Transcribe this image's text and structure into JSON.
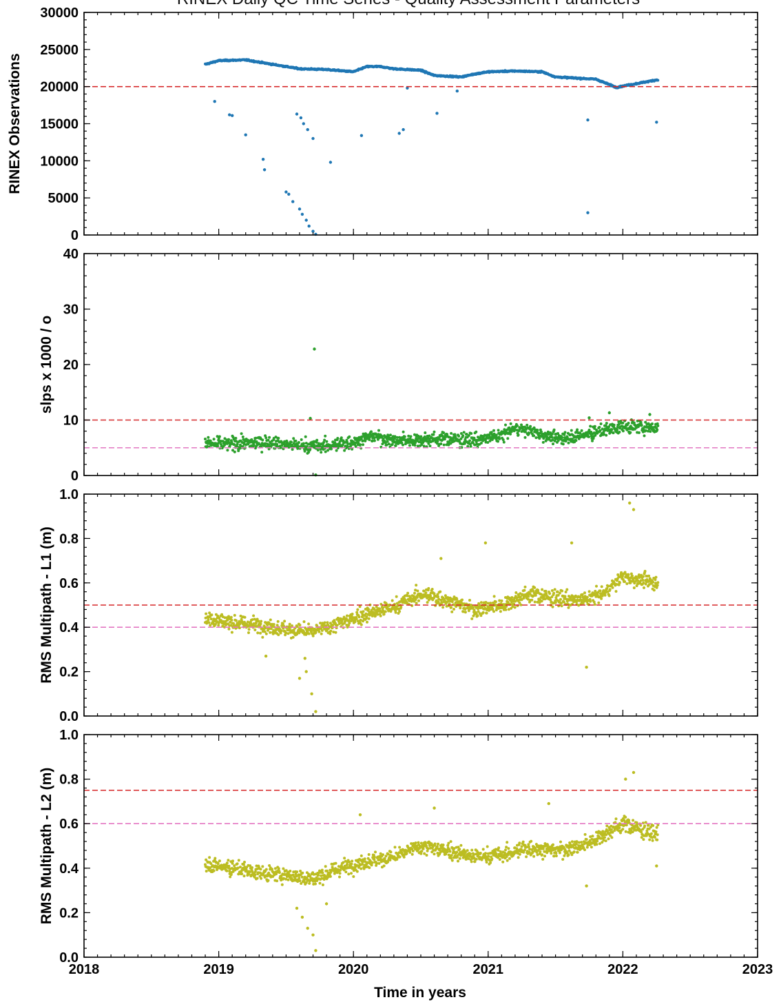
{
  "title": "RINEX Daily QC Time Series - Quality Assessment Parameters",
  "colors": {
    "observations": "#1f77b4",
    "slips": "#2ca02c",
    "multipath": "#bcbd22",
    "threshold_red": "#d62728",
    "threshold_pink": "#e377c2"
  },
  "chart_data": [
    {
      "type": "scatter",
      "ylabel": "RINEX Observations",
      "xlim": [
        2018,
        2023
      ],
      "ylim": [
        0,
        30000
      ],
      "yticks": [
        "0",
        "5000",
        "10000",
        "15000",
        "20000",
        "25000",
        "30000"
      ],
      "reference_lines": [
        {
          "y": 20000,
          "color": "red",
          "style": "dashed"
        }
      ],
      "trend": [
        [
          2018.9,
          23000
        ],
        [
          2019.0,
          23500
        ],
        [
          2019.2,
          23600
        ],
        [
          2019.4,
          23000
        ],
        [
          2019.6,
          22400
        ],
        [
          2019.8,
          22300
        ],
        [
          2020.0,
          22000
        ],
        [
          2020.1,
          22700
        ],
        [
          2020.2,
          22700
        ],
        [
          2020.3,
          22400
        ],
        [
          2020.5,
          22200
        ],
        [
          2020.6,
          21500
        ],
        [
          2020.8,
          21300
        ],
        [
          2020.9,
          21700
        ],
        [
          2021.0,
          22000
        ],
        [
          2021.2,
          22100
        ],
        [
          2021.4,
          22000
        ],
        [
          2021.5,
          21300
        ],
        [
          2021.7,
          21100
        ],
        [
          2021.8,
          21000
        ],
        [
          2021.95,
          19900
        ],
        [
          2022.1,
          20400
        ],
        [
          2022.25,
          20900
        ]
      ],
      "outliers": [
        [
          2018.97,
          18000
        ],
        [
          2019.08,
          16200
        ],
        [
          2019.1,
          16100
        ],
        [
          2019.2,
          13500
        ],
        [
          2019.33,
          10200
        ],
        [
          2019.34,
          8800
        ],
        [
          2019.5,
          5800
        ],
        [
          2019.52,
          5500
        ],
        [
          2019.55,
          4500
        ],
        [
          2019.6,
          3500
        ],
        [
          2019.62,
          2800
        ],
        [
          2019.65,
          2000
        ],
        [
          2019.67,
          1200
        ],
        [
          2019.7,
          500
        ],
        [
          2019.72,
          100
        ],
        [
          2019.58,
          16300
        ],
        [
          2019.61,
          15800
        ],
        [
          2019.63,
          15000
        ],
        [
          2019.66,
          14200
        ],
        [
          2019.7,
          13000
        ],
        [
          2019.83,
          9800
        ],
        [
          2020.06,
          13400
        ],
        [
          2020.34,
          13700
        ],
        [
          2020.37,
          14200
        ],
        [
          2020.4,
          19800
        ],
        [
          2020.62,
          16400
        ],
        [
          2020.77,
          19400
        ],
        [
          2021.74,
          15500
        ],
        [
          2021.74,
          3000
        ],
        [
          2022.25,
          15200
        ]
      ],
      "series_color": "#1f77b4"
    },
    {
      "type": "scatter",
      "ylabel": "slps x 1000 / o",
      "xlim": [
        2018,
        2023
      ],
      "ylim": [
        0,
        40
      ],
      "yticks": [
        "0",
        "10",
        "20",
        "30",
        "40"
      ],
      "reference_lines": [
        {
          "y": 10,
          "color": "red",
          "style": "dashed"
        },
        {
          "y": 5,
          "color": "pink",
          "style": "dashed"
        }
      ],
      "trend": [
        [
          2018.9,
          5.8
        ],
        [
          2019.0,
          5.6
        ],
        [
          2019.2,
          5.8
        ],
        [
          2019.4,
          6.0
        ],
        [
          2019.5,
          5.6
        ],
        [
          2019.7,
          5.2
        ],
        [
          2019.9,
          5.6
        ],
        [
          2020.0,
          6.0
        ],
        [
          2020.15,
          7.2
        ],
        [
          2020.3,
          6.2
        ],
        [
          2020.5,
          6.5
        ],
        [
          2020.7,
          6.6
        ],
        [
          2020.9,
          6.3
        ],
        [
          2021.1,
          7.2
        ],
        [
          2021.2,
          8.6
        ],
        [
          2021.35,
          7.9
        ],
        [
          2021.5,
          6.7
        ],
        [
          2021.7,
          7.3
        ],
        [
          2021.85,
          8.0
        ],
        [
          2022.0,
          8.9
        ],
        [
          2022.25,
          8.6
        ]
      ],
      "outliers": [
        [
          2019.71,
          22.8
        ],
        [
          2019.68,
          10.3
        ],
        [
          2019.72,
          0.1
        ],
        [
          2021.75,
          10.4
        ],
        [
          2021.9,
          11.3
        ],
        [
          2022.2,
          11.0
        ]
      ],
      "series_color": "#2ca02c"
    },
    {
      "type": "scatter",
      "ylabel": "RMS Multipath - L1 (m)",
      "xlim": [
        2018,
        2023
      ],
      "ylim": [
        0,
        1.0
      ],
      "yticks": [
        "0.0",
        "0.2",
        "0.4",
        "0.6",
        "0.8",
        "1.0"
      ],
      "reference_lines": [
        {
          "y": 0.5,
          "color": "red",
          "style": "dashed"
        },
        {
          "y": 0.4,
          "color": "pink",
          "style": "dashed"
        }
      ],
      "trend": [
        [
          2018.9,
          0.44
        ],
        [
          2019.1,
          0.42
        ],
        [
          2019.3,
          0.41
        ],
        [
          2019.5,
          0.39
        ],
        [
          2019.7,
          0.38
        ],
        [
          2019.9,
          0.42
        ],
        [
          2020.1,
          0.46
        ],
        [
          2020.3,
          0.49
        ],
        [
          2020.5,
          0.55
        ],
        [
          2020.7,
          0.52
        ],
        [
          2020.9,
          0.48
        ],
        [
          2021.1,
          0.5
        ],
        [
          2021.3,
          0.55
        ],
        [
          2021.5,
          0.53
        ],
        [
          2021.7,
          0.52
        ],
        [
          2021.85,
          0.55
        ],
        [
          2022.0,
          0.63
        ],
        [
          2022.25,
          0.6
        ]
      ],
      "outliers": [
        [
          2019.6,
          0.17
        ],
        [
          2019.65,
          0.2
        ],
        [
          2019.69,
          0.1
        ],
        [
          2019.72,
          0.02
        ],
        [
          2019.64,
          0.26
        ],
        [
          2019.35,
          0.27
        ],
        [
          2020.65,
          0.71
        ],
        [
          2020.98,
          0.78
        ],
        [
          2021.62,
          0.78
        ],
        [
          2021.73,
          0.22
        ],
        [
          2022.05,
          0.96
        ],
        [
          2022.08,
          0.93
        ]
      ],
      "series_color": "#bcbd22"
    },
    {
      "type": "scatter",
      "ylabel": "RMS Multipath - L2 (m)",
      "xlabel": "Time in years",
      "xlim": [
        2018,
        2023
      ],
      "ylim": [
        0,
        1.0
      ],
      "xticks": [
        "2018",
        "2019",
        "2020",
        "2021",
        "2022",
        "2023"
      ],
      "yticks": [
        "0.0",
        "0.2",
        "0.4",
        "0.6",
        "0.8",
        "1.0"
      ],
      "reference_lines": [
        {
          "y": 0.75,
          "color": "red",
          "style": "dashed"
        },
        {
          "y": 0.6,
          "color": "pink",
          "style": "dashed"
        }
      ],
      "trend": [
        [
          2018.9,
          0.42
        ],
        [
          2019.1,
          0.4
        ],
        [
          2019.3,
          0.38
        ],
        [
          2019.5,
          0.37
        ],
        [
          2019.7,
          0.35
        ],
        [
          2019.9,
          0.4
        ],
        [
          2020.1,
          0.43
        ],
        [
          2020.3,
          0.45
        ],
        [
          2020.5,
          0.5
        ],
        [
          2020.7,
          0.48
        ],
        [
          2020.9,
          0.45
        ],
        [
          2021.1,
          0.46
        ],
        [
          2021.3,
          0.49
        ],
        [
          2021.5,
          0.48
        ],
        [
          2021.7,
          0.5
        ],
        [
          2021.85,
          0.55
        ],
        [
          2022.0,
          0.6
        ],
        [
          2022.25,
          0.55
        ]
      ],
      "outliers": [
        [
          2019.62,
          0.18
        ],
        [
          2019.66,
          0.13
        ],
        [
          2019.7,
          0.1
        ],
        [
          2019.72,
          0.03
        ],
        [
          2019.58,
          0.22
        ],
        [
          2019.8,
          0.24
        ],
        [
          2020.05,
          0.64
        ],
        [
          2020.6,
          0.67
        ],
        [
          2021.45,
          0.69
        ],
        [
          2021.73,
          0.32
        ],
        [
          2022.08,
          0.83
        ],
        [
          2022.02,
          0.8
        ],
        [
          2022.25,
          0.41
        ]
      ],
      "series_color": "#bcbd22"
    }
  ]
}
